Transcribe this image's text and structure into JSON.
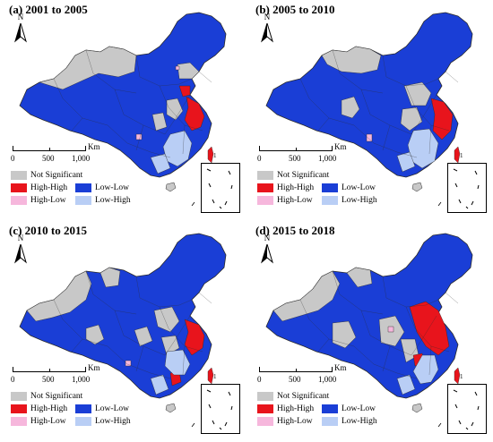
{
  "colors": {
    "not_significant": "#c8c8c8",
    "high_high": "#e8141c",
    "high_low": "#f6b7dc",
    "low_low": "#1a3ed6",
    "low_high": "#b9cef5",
    "boundary": "#2a2a2a"
  },
  "map_labels": {
    "north": "N",
    "scale_unit": "Km",
    "scale_ticks": [
      "0",
      "500",
      "1,000"
    ],
    "island_label": "1"
  },
  "legend": {
    "not_significant": "Not Significant",
    "high_high": "High-High",
    "low_low": "Low-Low",
    "high_low": "High-Low",
    "low_high": "Low-High"
  },
  "panels": [
    {
      "title": "(a) 2001 to 2005"
    },
    {
      "title": "(b) 2005 to 2010"
    },
    {
      "title": "(c) 2010 to 2015"
    },
    {
      "title": "(d) 2015 to 2018"
    }
  ]
}
